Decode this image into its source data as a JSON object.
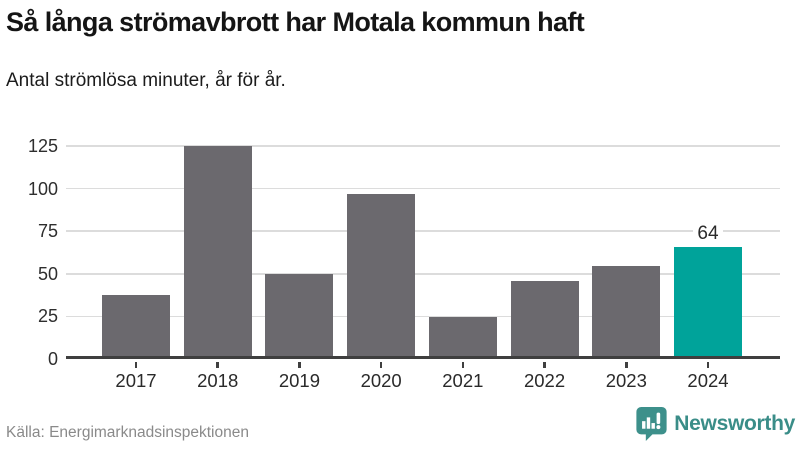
{
  "chart_data": {
    "type": "bar",
    "title": "Så långa strömavbrott har Motala kommun haft",
    "subtitle": "Antal strömlösa minuter, år för år.",
    "categories": [
      "2017",
      "2018",
      "2019",
      "2020",
      "2021",
      "2022",
      "2023",
      "2024"
    ],
    "values": [
      36,
      123,
      48,
      95,
      23,
      44,
      53,
      64
    ],
    "ylim": [
      0,
      125
    ],
    "yticks": [
      0,
      25,
      50,
      75,
      100,
      125
    ],
    "grid": "horizontal",
    "legend": "none",
    "highlight_index": 7,
    "value_labels": {
      "7": "64"
    },
    "bar_color": "#6b696e",
    "highlight_color": "#00a39a"
  },
  "colors": {
    "bar": "#6b696e",
    "highlight": "#00a39a",
    "axis": "#3f3f3f",
    "gridline": "#dcdcdc",
    "brand_teal": "#3d908b",
    "source_text": "#8a8a8a"
  },
  "footer": {
    "source": "Källa: Energimarknadsinspektionen",
    "brand": "Newsworthy"
  }
}
